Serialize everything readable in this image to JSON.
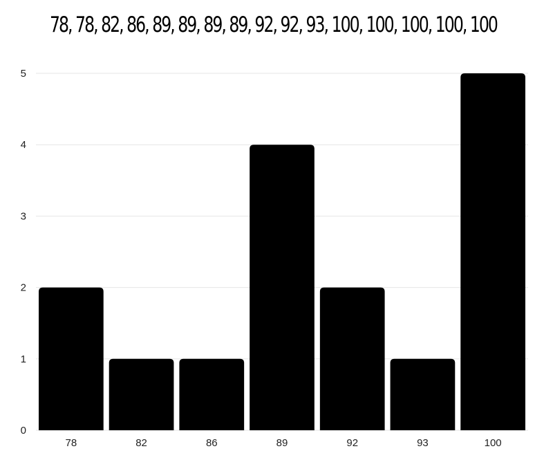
{
  "chart_data": {
    "type": "bar",
    "title": "78, 78, 82, 86, 89, 89, 89, 89, 92, 92, 93, 100, 100, 100, 100, 100",
    "xlabel": "",
    "ylabel": "",
    "categories": [
      "78",
      "82",
      "86",
      "89",
      "92",
      "93",
      "100"
    ],
    "values": [
      2,
      1,
      1,
      4,
      2,
      1,
      5
    ],
    "ylim": [
      0,
      5
    ],
    "yticks": [
      0,
      1,
      2,
      3,
      4,
      5
    ],
    "grid": true,
    "bar_color": "#000000",
    "grid_color": "#e6e6e6"
  }
}
